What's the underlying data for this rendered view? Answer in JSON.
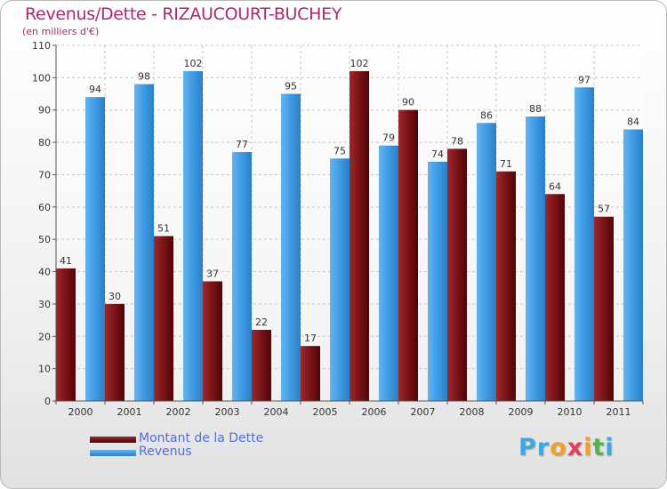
{
  "colors": {
    "debt": "#7a1216",
    "revenue": "#3f9ae4",
    "title": "#b0286a",
    "legend_text": "#4d6fe0"
  },
  "legend": {
    "debt_label": "Montant de la Dette",
    "revenue_label": "Revenus"
  },
  "logo": {
    "text": "Proxiti",
    "letters": [
      "P",
      "r",
      "o",
      "x",
      "i",
      "t",
      "i"
    ],
    "letter_colors": [
      "#3fa8e0",
      "#3fa8e0",
      "#f0a030",
      "#e04060",
      "#f0a030",
      "#50b848",
      "#3fa8e0"
    ]
  },
  "chart_data": {
    "type": "bar",
    "title": "Revenus/Dette - RIZAUCOURT-BUCHEY",
    "subtitle": "(en milliers d'€)",
    "xlabel": "",
    "ylabel": "",
    "ylim": [
      0,
      110
    ],
    "yticks": [
      0,
      10,
      20,
      30,
      40,
      50,
      60,
      70,
      80,
      90,
      100,
      110
    ],
    "grid": true,
    "legend_position": "bottom-left",
    "categories": [
      "2000",
      "2001",
      "2002",
      "2003",
      "2004",
      "2005",
      "2006",
      "2007",
      "2008",
      "2009",
      "2010",
      "2011"
    ],
    "series": [
      {
        "name": "Montant de la Dette",
        "values": [
          41,
          30,
          51,
          37,
          22,
          17,
          102,
          90,
          78,
          71,
          64,
          57
        ]
      },
      {
        "name": "Revenus",
        "values": [
          94,
          98,
          102,
          77,
          95,
          75,
          79,
          74,
          86,
          88,
          97,
          84
        ]
      }
    ]
  }
}
